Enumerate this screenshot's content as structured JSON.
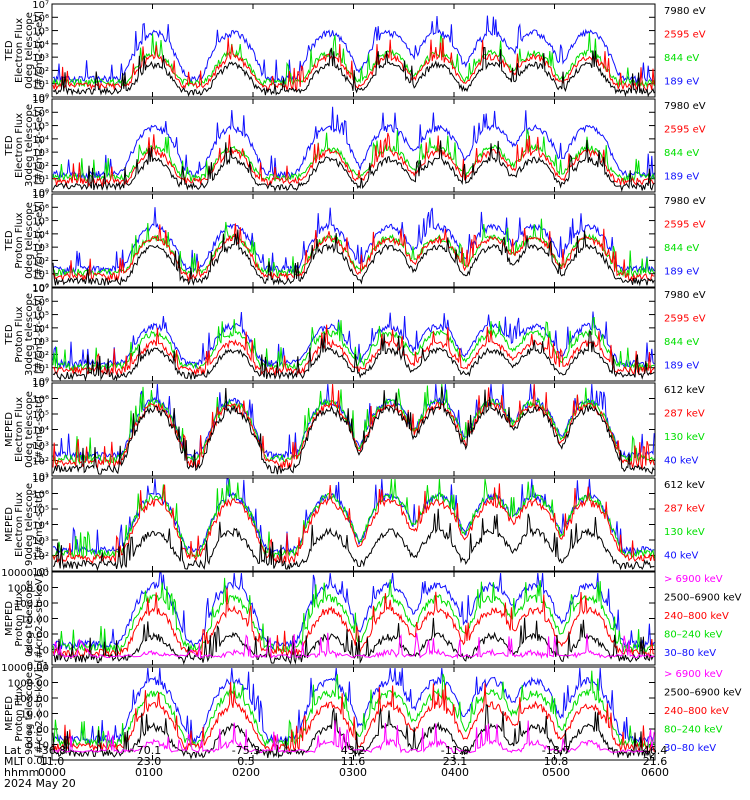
{
  "colors": {
    "blue": "#1010ff",
    "red": "#ff0000",
    "green": "#00e000",
    "black": "#000000",
    "magenta": "#ff00ff"
  },
  "chart_data": [
    {
      "type": "line",
      "scale": "log",
      "ylim": [
        1,
        10000000
      ],
      "yticks": [
        "10⁰",
        "10¹",
        "10²",
        "10³",
        "10⁴",
        "10⁵",
        "10⁶",
        "10⁷"
      ],
      "ylabel": [
        "TED",
        "Electron Flux",
        "0deg telescope",
        "[#/cm2-sr-s-eV]"
      ],
      "legend": [
        {
          "label": "7980 eV",
          "color": "#000000"
        },
        {
          "label": "2595 eV",
          "color": "#ff0000"
        },
        {
          "label": "844 eV",
          "color": "#00e000"
        },
        {
          "label": "189 eV",
          "color": "#1010ff"
        }
      ],
      "series_peaks": {
        "blue": 100000,
        "green": 3000,
        "red": 1500,
        "black": 400
      }
    },
    {
      "type": "line",
      "scale": "log",
      "ylim": [
        1,
        10000000
      ],
      "yticks": [
        "10⁰",
        "10¹",
        "10²",
        "10³",
        "10⁴",
        "10⁵",
        "10⁶",
        "10⁷"
      ],
      "ylabel": [
        "TED",
        "Electron Flux",
        "30deg telescope",
        "[#/cm2-sr-s-eV]"
      ],
      "legend": [
        {
          "label": "7980 eV",
          "color": "#000000"
        },
        {
          "label": "2595 eV",
          "color": "#ff0000"
        },
        {
          "label": "844 eV",
          "color": "#00e000"
        },
        {
          "label": "189 eV",
          "color": "#1010ff"
        }
      ],
      "series_peaks": {
        "blue": 100000,
        "green": 3000,
        "red": 1500,
        "black": 400
      }
    },
    {
      "type": "line",
      "scale": "log",
      "ylim": [
        1,
        10000000
      ],
      "yticks": [
        "10⁰",
        "10¹",
        "10²",
        "10³",
        "10⁴",
        "10⁵",
        "10⁶",
        "10⁷"
      ],
      "ylabel": [
        "TED",
        "Proton Flux",
        "0deg telescope",
        "[#/cm2-sr-s-eV]"
      ],
      "legend": [
        {
          "label": "7980 eV",
          "color": "#000000"
        },
        {
          "label": "2595 eV",
          "color": "#ff0000"
        },
        {
          "label": "844 eV",
          "color": "#00e000"
        },
        {
          "label": "189 eV",
          "color": "#1010ff"
        }
      ],
      "series_peaks": {
        "blue": 50000,
        "green": 8000,
        "red": 6000,
        "black": 1500
      }
    },
    {
      "type": "line",
      "scale": "log",
      "ylim": [
        1,
        10000000
      ],
      "yticks": [
        "10⁰",
        "10¹",
        "10²",
        "10³",
        "10⁴",
        "10⁵",
        "10⁶",
        "10⁷"
      ],
      "ylabel": [
        "TED",
        "Proton Flux",
        "30deg telescope",
        "[#/cm2-sr-s-eV]"
      ],
      "legend": [
        {
          "label": "7980 eV",
          "color": "#000000"
        },
        {
          "label": "2595 eV",
          "color": "#ff0000"
        },
        {
          "label": "844 eV",
          "color": "#00e000"
        },
        {
          "label": "189 eV",
          "color": "#1010ff"
        }
      ],
      "series_peaks": {
        "blue": 20000,
        "green": 6000,
        "red": 1000,
        "black": 300
      }
    },
    {
      "type": "line",
      "scale": "log",
      "ylim": [
        10,
        10000000
      ],
      "yticks": [
        "10¹",
        "10²",
        "10³",
        "10⁴",
        "10⁵",
        "10⁶",
        "10⁷"
      ],
      "ylabel": [
        "MEPED",
        "Electron Flux",
        "0deg telescope",
        "[#/cm2-s-str]"
      ],
      "legend": [
        {
          "label": "612 keV",
          "color": "#000000"
        },
        {
          "label": "287 keV",
          "color": "#ff0000"
        },
        {
          "label": "130 keV",
          "color": "#00e000"
        },
        {
          "label": "40 keV",
          "color": "#1010ff"
        }
      ],
      "series_peaks": {
        "blue": 1000000,
        "green": 800000,
        "red": 500000,
        "black": 300000
      }
    },
    {
      "type": "line",
      "scale": "log",
      "ylim": [
        10,
        10000000
      ],
      "yticks": [
        "10¹",
        "10²",
        "10³",
        "10⁴",
        "10⁵",
        "10⁶",
        "10⁷"
      ],
      "ylabel": [
        "MEPED",
        "Electron Flux",
        "90deg telescope",
        "[#/cm2-s-str]"
      ],
      "legend": [
        {
          "label": "612 keV",
          "color": "#000000"
        },
        {
          "label": "287 keV",
          "color": "#ff0000"
        },
        {
          "label": "130 keV",
          "color": "#00e000"
        },
        {
          "label": "40 keV",
          "color": "#1010ff"
        }
      ],
      "series_peaks": {
        "blue": 1000000,
        "green": 900000,
        "red": 400000,
        "black": 5000
      }
    },
    {
      "type": "line",
      "scale": "log",
      "ylim": [
        0.01,
        10000
      ],
      "yticks": [
        "0.01",
        "0.10",
        "1.00",
        "10.00",
        "100.00",
        "1000.00",
        "10000.00"
      ],
      "ylabel": [
        "MEPED",
        "Proton Flux",
        "0deg telescope",
        "[#/cm2-s-str-keV]"
      ],
      "legend": [
        {
          "label": "> 6900 keV",
          "color": "#ff00ff"
        },
        {
          "label": "2500–6900 keV",
          "color": "#000000"
        },
        {
          "label": "240–800 keV",
          "color": "#ff0000"
        },
        {
          "label": "80–240 keV",
          "color": "#00e000"
        },
        {
          "label": "30–80 keV",
          "color": "#1010ff"
        }
      ],
      "series_peaks": {
        "blue": 2000,
        "green": 300,
        "red": 50,
        "black": 1,
        "magenta": 0.05
      }
    },
    {
      "type": "line",
      "scale": "log",
      "ylim": [
        0.01,
        10000
      ],
      "yticks": [
        "0.01",
        "0.10",
        "1.00",
        "10.00",
        "100.00",
        "1000.00",
        "10000.00"
      ],
      "ylabel": [
        "MEPED",
        "Proton Flux",
        "90deg telescope",
        "[#/cm2-s-str-keV]"
      ],
      "legend": [
        {
          "label": "> 6900 keV",
          "color": "#ff00ff"
        },
        {
          "label": "2500–6900 keV",
          "color": "#000000"
        },
        {
          "label": "240–800 keV",
          "color": "#ff0000"
        },
        {
          "label": "80–240 keV",
          "color": "#00e000"
        },
        {
          "label": "30–80 keV",
          "color": "#1010ff"
        }
      ],
      "series_peaks": {
        "blue": 2000,
        "green": 300,
        "red": 50,
        "black": 2,
        "magenta": 0.15
      }
    }
  ],
  "passes": [
    0.17,
    0.3,
    0.46,
    0.56,
    0.64,
    0.73,
    0.8,
    0.89
  ],
  "time_axis": {
    "row_labels": [
      "Lat",
      "MLT",
      "hhmm",
      "2024 May 20"
    ],
    "ticks": [
      {
        "lat": "-36.8",
        "mlt": "11.0",
        "hhmm": "0000"
      },
      {
        "lat": "70.1",
        "mlt": "23.0",
        "hhmm": "0100"
      },
      {
        "lat": "-75.3",
        "mlt": "0.5",
        "hhmm": "0200"
      },
      {
        "lat": "43.2",
        "mlt": "11.6",
        "hhmm": "0300"
      },
      {
        "lat": "-11.9",
        "mlt": "23.1",
        "hhmm": "0400"
      },
      {
        "lat": "-18.7",
        "mlt": "10.8",
        "hhmm": "0500"
      },
      {
        "lat": "46.4",
        "mlt": "21.6",
        "hhmm": "0600"
      }
    ]
  }
}
